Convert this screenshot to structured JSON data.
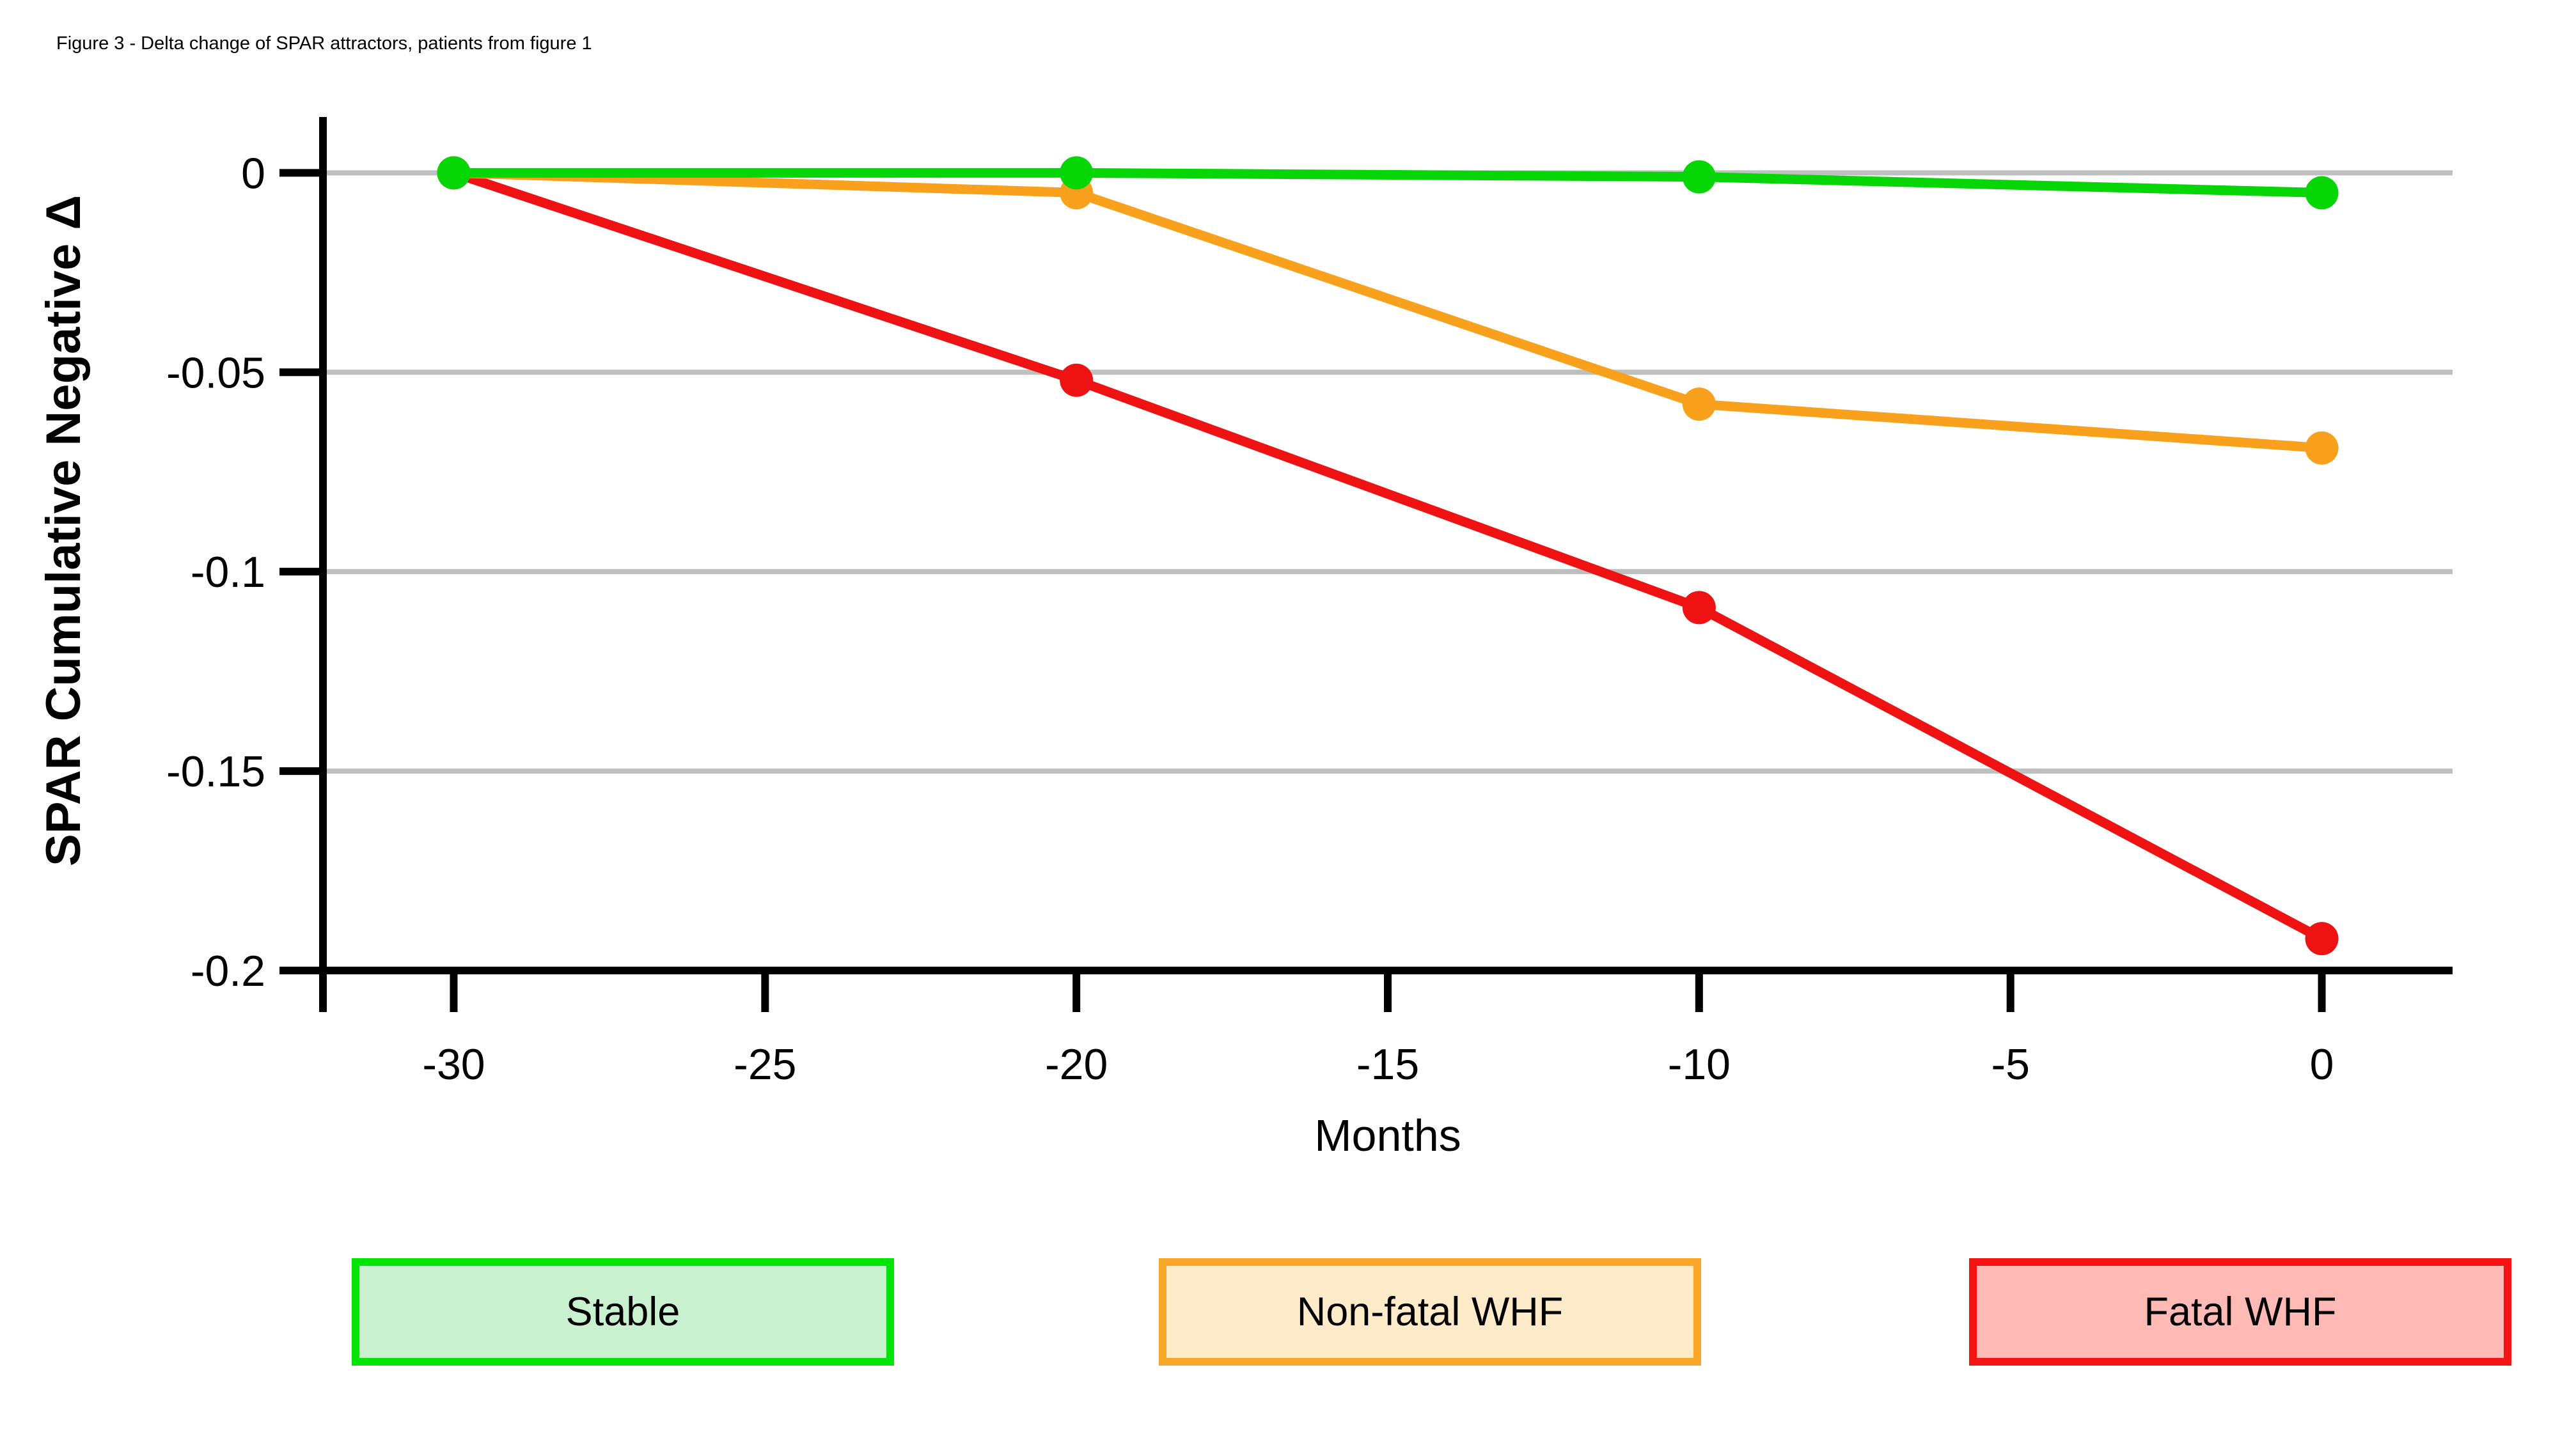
{
  "page": {
    "title": "Figure 3 - Delta change of SPAR attractors, patients from figure 1",
    "background": "#ffffff"
  },
  "chart_data": {
    "type": "line",
    "title": "Figure 3 - Delta change of SPAR attractors, patients from figure 1",
    "xlabel": "Months",
    "ylabel": "SPAR Cumulative Negative Δ",
    "x": [
      -30,
      -20,
      -10,
      0
    ],
    "series": [
      {
        "name": "Stable",
        "color": "#06d506",
        "values": [
          0,
          0,
          -0.001,
          -0.005
        ]
      },
      {
        "name": "Non-fatal WHF",
        "color": "#f9a11c",
        "values": [
          0,
          -0.005,
          -0.058,
          -0.069
        ]
      },
      {
        "name": "Fatal WHF",
        "color": "#ee1212",
        "values": [
          0,
          -0.052,
          -0.109,
          -0.192
        ]
      }
    ],
    "x_ticks": {
      "values": [
        -30,
        -25,
        -20,
        -15,
        -10,
        -5,
        0
      ],
      "labels": [
        "-30",
        "-25",
        "-20",
        "-15",
        "-10",
        "-5",
        "0"
      ]
    },
    "y_ticks": {
      "values": [
        0,
        -0.05,
        -0.1,
        -0.15,
        -0.2
      ],
      "labels": [
        "0",
        "-0.05",
        "-0.1",
        "-0.15",
        "-0.2"
      ]
    },
    "xlim": [
      -32.1,
      2.1
    ],
    "ylim": [
      -0.2,
      0.014
    ],
    "grid": {
      "on": true,
      "color": "#bfbfbf",
      "y_values": [
        0,
        -0.05,
        -0.1,
        -0.15
      ]
    },
    "axis_color": "#000000",
    "legend_position": "bottom"
  },
  "legend": {
    "items": [
      {
        "label": "Stable",
        "fill": "#c9f1cf",
        "border": "#00e406"
      },
      {
        "label": "Non-fatal WHF",
        "fill": "#fdeac9",
        "border": "#f7a628"
      },
      {
        "label": "Fatal WHF",
        "fill": "#ffbab6",
        "border": "#f41414"
      }
    ]
  }
}
